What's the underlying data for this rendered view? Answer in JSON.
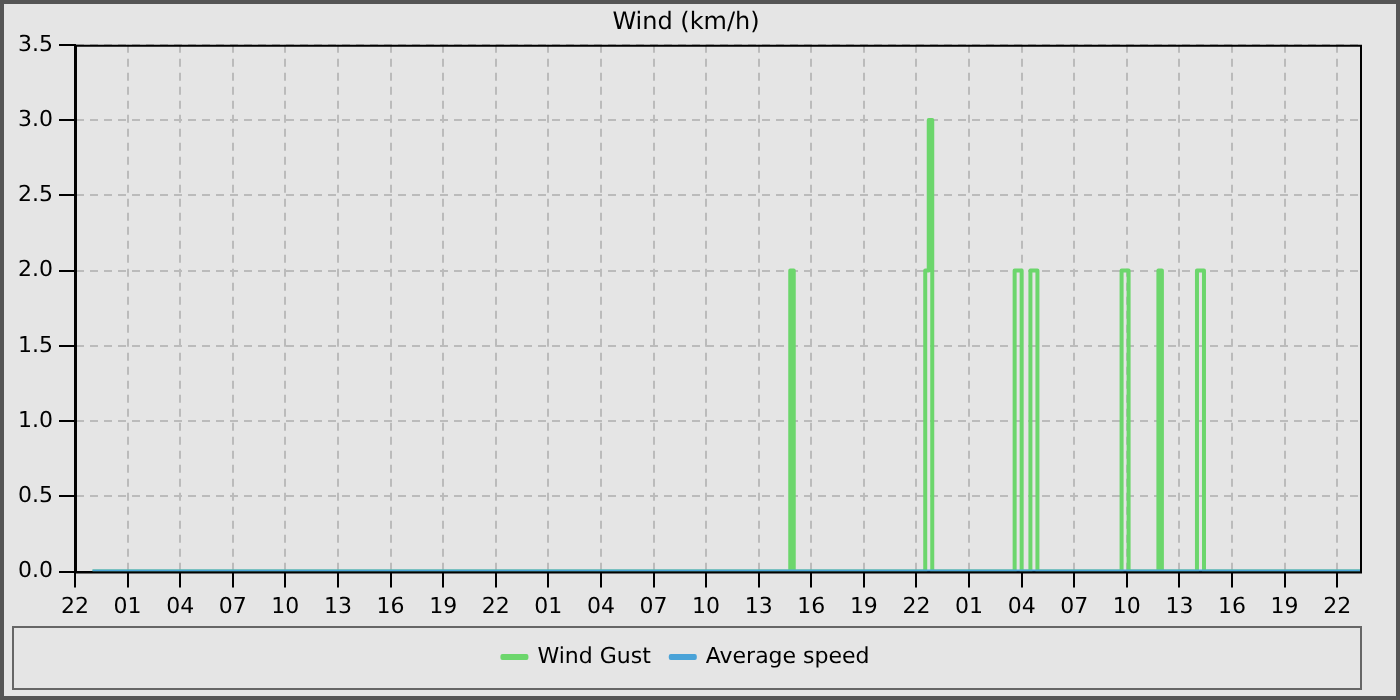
{
  "chart_data": {
    "type": "line",
    "title": "Wind (km/h)",
    "xlim": [
      "--01-01T22:00",
      "--01-04T23:18"
    ],
    "xticks": [
      {
        "value": "--01-01T22:00",
        "label": "22"
      },
      {
        "value": "--01-02T01:00",
        "label": "01"
      },
      {
        "value": "--01-02T04:00",
        "label": "04"
      },
      {
        "value": "--01-02T07:00",
        "label": "07"
      },
      {
        "value": "--01-02T10:00",
        "label": "10"
      },
      {
        "value": "--01-02T13:00",
        "label": "13"
      },
      {
        "value": "--01-02T16:00",
        "label": "16"
      },
      {
        "value": "--01-02T19:00",
        "label": "19"
      },
      {
        "value": "--01-02T22:00",
        "label": "22"
      },
      {
        "value": "--01-03T01:00",
        "label": "01"
      },
      {
        "value": "--01-03T04:00",
        "label": "04"
      },
      {
        "value": "--01-03T07:00",
        "label": "07"
      },
      {
        "value": "--01-03T10:00",
        "label": "10"
      },
      {
        "value": "--01-03T13:00",
        "label": "13"
      },
      {
        "value": "--01-03T16:00",
        "label": "16"
      },
      {
        "value": "--01-03T19:00",
        "label": "19"
      },
      {
        "value": "--01-03T22:00",
        "label": "22"
      },
      {
        "value": "--01-04T01:00",
        "label": "01"
      },
      {
        "value": "--01-04T04:00",
        "label": "04"
      },
      {
        "value": "--01-04T07:00",
        "label": "07"
      },
      {
        "value": "--01-04T10:00",
        "label": "10"
      },
      {
        "value": "--01-04T13:00",
        "label": "13"
      },
      {
        "value": "--01-04T16:00",
        "label": "16"
      },
      {
        "value": "--01-04T19:00",
        "label": "19"
      },
      {
        "value": "--01-04T22:00",
        "label": "22"
      }
    ],
    "ylim": [
      0,
      3.5
    ],
    "yticks": [
      {
        "value": 0,
        "label": "0.0"
      },
      {
        "value": 0.5,
        "label": "0.5"
      },
      {
        "value": 1,
        "label": "1.0"
      },
      {
        "value": 1.5,
        "label": "1.5"
      },
      {
        "value": 2,
        "label": "2.0"
      },
      {
        "value": 2.5,
        "label": "2.5"
      },
      {
        "value": 3,
        "label": "3.0"
      },
      {
        "value": 3.5,
        "label": "3.5"
      }
    ],
    "grid": true,
    "legend": "bottom",
    "marker": "none",
    "line_style": "solid",
    "series": [
      {
        "name": "Wind Gust",
        "color": "#6cd66c",
        "x": [
          "--01-01T23:00",
          "--01-03T14:48",
          "--01-03T14:48",
          "--01-03T15:00",
          "--01-03T15:00",
          "--01-03T22:30",
          "--01-03T22:30",
          "--01-03T22:42",
          "--01-03T22:42",
          "--01-03T22:54",
          "--01-03T22:54",
          "--01-04T03:36",
          "--01-04T03:36",
          "--01-04T04:00",
          "--01-04T04:00",
          "--01-04T04:30",
          "--01-04T04:30",
          "--01-04T04:54",
          "--01-04T04:54",
          "--01-04T09:42",
          "--01-04T09:42",
          "--01-04T10:06",
          "--01-04T10:06",
          "--01-04T11:48",
          "--01-04T11:48",
          "--01-04T12:00",
          "--01-04T12:00",
          "--01-04T14:00",
          "--01-04T14:00",
          "--01-04T14:24",
          "--01-04T14:24",
          "--01-04T23:18"
        ],
        "values": [
          0,
          0,
          2,
          2,
          0,
          0,
          2,
          2,
          3,
          3,
          0,
          0,
          2,
          2,
          0,
          0,
          2,
          2,
          0,
          0,
          2,
          2,
          0,
          0,
          2,
          2,
          0,
          0,
          2,
          2,
          0,
          0
        ]
      },
      {
        "name": "Average speed",
        "color": "#4aa3d8",
        "x": [
          "--01-01T23:00",
          "--01-04T23:18"
        ],
        "values": [
          0,
          0
        ]
      }
    ]
  }
}
